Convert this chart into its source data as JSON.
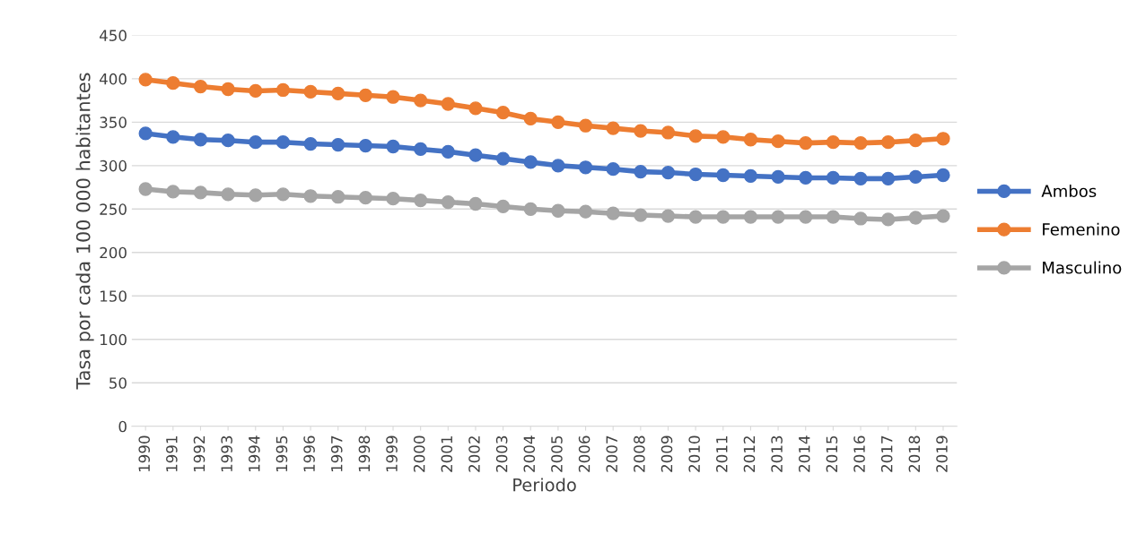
{
  "chart_data": {
    "type": "line",
    "xlabel": "Periodo",
    "ylabel": "Tasa por cada 100 000 habitantes",
    "categories": [
      "1990",
      "1991",
      "1992",
      "1993",
      "1994",
      "1995",
      "1996",
      "1997",
      "1998",
      "1999",
      "2000",
      "2001",
      "2002",
      "2003",
      "2004",
      "2005",
      "2006",
      "2007",
      "2008",
      "2009",
      "2010",
      "2011",
      "2012",
      "2013",
      "2014",
      "2015",
      "2016",
      "2017",
      "2018",
      "2019"
    ],
    "series": [
      {
        "name": "Ambos",
        "color": "#4472c4",
        "values": [
          337,
          333,
          330,
          329,
          327,
          327,
          325,
          324,
          323,
          322,
          319,
          316,
          312,
          308,
          304,
          300,
          298,
          296,
          293,
          292,
          290,
          289,
          288,
          287,
          286,
          286,
          285,
          285,
          287,
          289
        ]
      },
      {
        "name": "Femenino",
        "color": "#ed7d31",
        "values": [
          399,
          395,
          391,
          388,
          386,
          387,
          385,
          383,
          381,
          379,
          375,
          371,
          366,
          361,
          354,
          350,
          346,
          343,
          340,
          338,
          334,
          333,
          330,
          328,
          326,
          327,
          326,
          327,
          329,
          331
        ]
      },
      {
        "name": "Masculino",
        "color": "#a5a5a5",
        "values": [
          273,
          270,
          269,
          267,
          266,
          267,
          265,
          264,
          263,
          262,
          260,
          258,
          256,
          253,
          250,
          248,
          247,
          245,
          243,
          242,
          241,
          241,
          241,
          241,
          241,
          241,
          239,
          238,
          240,
          242
        ]
      }
    ],
    "ylim": [
      0,
      450
    ],
    "yticks": [
      0,
      50,
      100,
      150,
      200,
      250,
      300,
      350,
      400,
      450
    ],
    "grid": "y",
    "legend": "right",
    "marker": "circle",
    "line_style": "solid"
  }
}
